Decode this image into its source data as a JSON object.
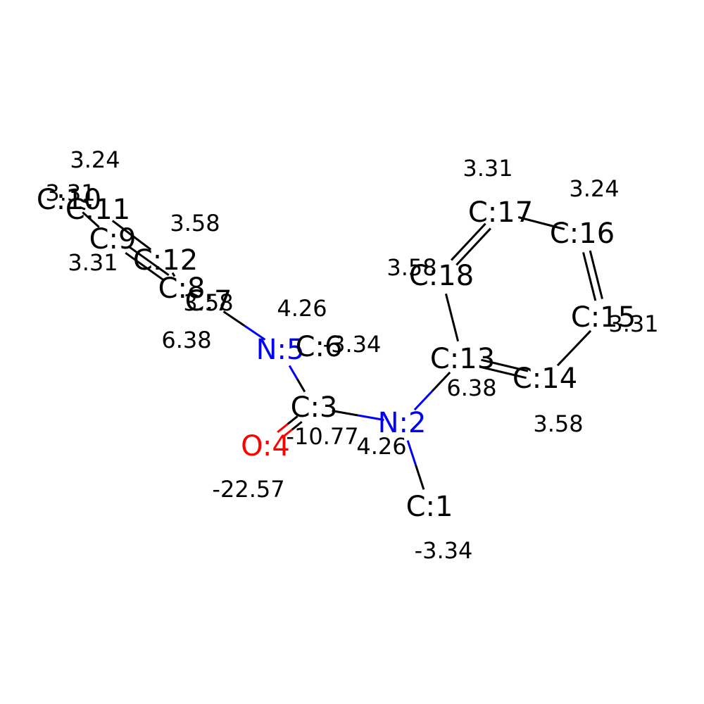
{
  "colors": {
    "C": "#000000",
    "N": "#0000ff",
    "O": "#ff0000",
    "value": "#000000"
  },
  "atoms": [
    {
      "id": 1,
      "element": "C",
      "label": "C:1",
      "value": "-3.34"
    },
    {
      "id": 2,
      "element": "N",
      "label": "N:2",
      "value": "4.26"
    },
    {
      "id": 3,
      "element": "C",
      "label": "C:3",
      "value": "-10.77"
    },
    {
      "id": 4,
      "element": "O",
      "label": "O:4",
      "value": "-22.57"
    },
    {
      "id": 5,
      "element": "N",
      "label": "N:5",
      "value": "4.26"
    },
    {
      "id": 6,
      "element": "C",
      "label": "C:6",
      "value": "-3.34"
    },
    {
      "id": 7,
      "element": "C",
      "label": "C:7",
      "value": "6.38"
    },
    {
      "id": 8,
      "element": "C",
      "label": "C:8",
      "value": "3.58"
    },
    {
      "id": 9,
      "element": "C",
      "label": "C:9",
      "value": "3.31"
    },
    {
      "id": 10,
      "element": "C",
      "label": "C:10",
      "value": "3.24"
    },
    {
      "id": 11,
      "element": "C",
      "label": "C:11",
      "value": "3.31"
    },
    {
      "id": 12,
      "element": "C",
      "label": "C:12",
      "value": "3.58"
    },
    {
      "id": 13,
      "element": "C",
      "label": "C:13",
      "value": "6.38"
    },
    {
      "id": 14,
      "element": "C",
      "label": "C:14",
      "value": "3.58"
    },
    {
      "id": 15,
      "element": "C",
      "label": "C:15",
      "value": "3.31"
    },
    {
      "id": 16,
      "element": "C",
      "label": "C:16",
      "value": "3.24"
    },
    {
      "id": 17,
      "element": "C",
      "label": "C:17",
      "value": "3.31"
    },
    {
      "id": 18,
      "element": "C",
      "label": "C:18",
      "value": "3.58"
    }
  ],
  "bonds": [
    {
      "a": 1,
      "b": 2,
      "order": 1
    },
    {
      "a": 2,
      "b": 3,
      "order": 1
    },
    {
      "a": 3,
      "b": 4,
      "order": 2
    },
    {
      "a": 3,
      "b": 5,
      "order": 1
    },
    {
      "a": 5,
      "b": 6,
      "order": 1
    },
    {
      "a": 5,
      "b": 7,
      "order": 1
    },
    {
      "a": 7,
      "b": 8,
      "order": 1
    },
    {
      "a": 8,
      "b": 9,
      "order": 2
    },
    {
      "a": 9,
      "b": 10,
      "order": 1
    },
    {
      "a": 10,
      "b": 11,
      "order": 2
    },
    {
      "a": 11,
      "b": 12,
      "order": 1
    },
    {
      "a": 12,
      "b": 8,
      "order": 1
    },
    {
      "a": 2,
      "b": 13,
      "order": 1
    },
    {
      "a": 13,
      "b": 14,
      "order": 2
    },
    {
      "a": 14,
      "b": 15,
      "order": 1
    },
    {
      "a": 15,
      "b": 16,
      "order": 2
    },
    {
      "a": 16,
      "b": 17,
      "order": 1
    },
    {
      "a": 17,
      "b": 18,
      "order": 2
    },
    {
      "a": 18,
      "b": 13,
      "order": 1
    }
  ]
}
